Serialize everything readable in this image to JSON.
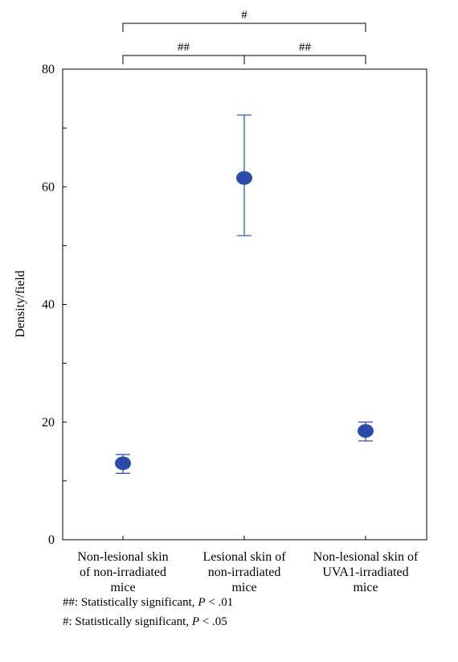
{
  "chart_data": {
    "type": "scatter",
    "ylabel": "Density/field",
    "ylim": [
      0,
      80
    ],
    "yticks": [
      0,
      20,
      40,
      60,
      80
    ],
    "categories": [
      [
        "Non-lesional skin",
        "of non-irradiated",
        "mice"
      ],
      [
        "Lesional skin of",
        "non-irradiated",
        "mice"
      ],
      [
        "Non-lesional skin of",
        "UVA1-irradiated",
        "mice"
      ]
    ],
    "values": [
      13,
      61.5,
      18.5
    ],
    "error_low": [
      11.3,
      51.7,
      16.8
    ],
    "error_high": [
      14.5,
      72.2,
      20.0
    ],
    "marker_color": "#2b4bab",
    "significance": [
      {
        "from": 0,
        "to": 2,
        "label": "#"
      },
      {
        "from": 0,
        "to": 1,
        "label": "##"
      },
      {
        "from": 1,
        "to": 2,
        "label": "##"
      }
    ]
  },
  "footnotes": [
    {
      "symbol": "##",
      "text": ": Statistically significant, ",
      "p": "P",
      "rest": " < .01"
    },
    {
      "symbol": "#",
      "text": ": Statistically significant, ",
      "p": "P",
      "rest": " < .05"
    }
  ]
}
